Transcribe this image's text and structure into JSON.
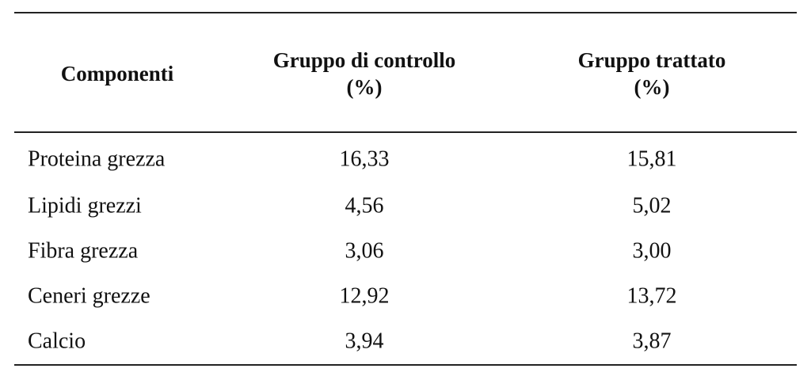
{
  "table": {
    "header": [
      [
        "Componenti"
      ],
      [
        "Gruppo di controllo",
        "(%)"
      ],
      [
        "Gruppo trattato",
        "(%)"
      ]
    ],
    "rows": [
      [
        "Proteina grezza",
        "16,33",
        "15,81"
      ],
      [
        "Lipidi grezzi",
        "4,56",
        "5,02"
      ],
      [
        "Fibra grezza",
        "3,06",
        "3,00"
      ],
      [
        "Ceneri grezze",
        "12,92",
        "13,72"
      ],
      [
        "Calcio",
        "3,94",
        "3,87"
      ]
    ]
  }
}
